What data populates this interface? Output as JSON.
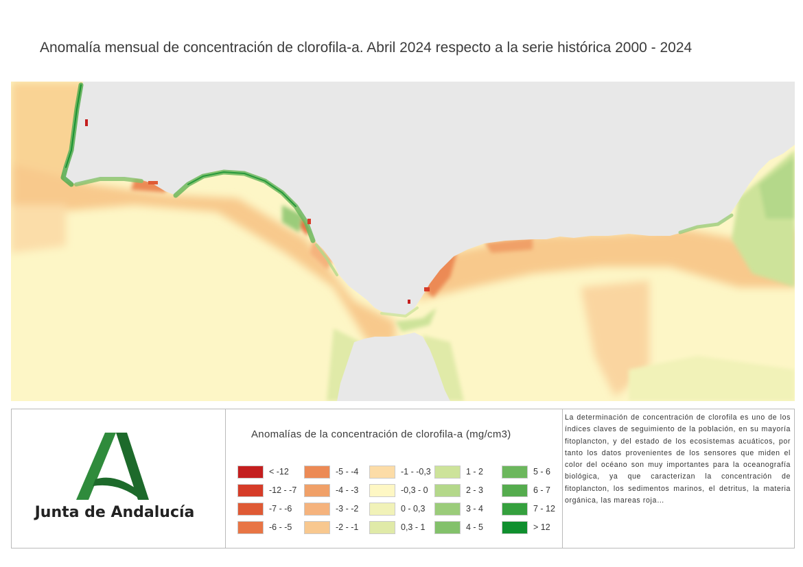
{
  "title": "Anomalía mensual de concentración de clorofila-a. Abril 2024 respecto a la serie histórica 2000 - 2024",
  "legend": {
    "title": "Anomalías de la concentración de clorofila-a (mg/cm3)",
    "items": [
      {
        "label": "< -12",
        "color": "#c41e1e"
      },
      {
        "label": "-12 - -7",
        "color": "#d63c28"
      },
      {
        "label": "-7 - -6",
        "color": "#df5a35"
      },
      {
        "label": "-6 - -5",
        "color": "#e87545"
      },
      {
        "label": "-5 - -4",
        "color": "#ec8a55"
      },
      {
        "label": "-4 - -3",
        "color": "#f0a068"
      },
      {
        "label": "-3 - -2",
        "color": "#f5b37d"
      },
      {
        "label": "-2 - -1",
        "color": "#f8c88f"
      },
      {
        "label": "-1 - -0,3",
        "color": "#fcdca7"
      },
      {
        "label": "-0,3 - 0",
        "color": "#fef7c4"
      },
      {
        "label": "0 - 0,3",
        "color": "#f1f2b8"
      },
      {
        "label": "0,3 - 1",
        "color": "#e0eaa8"
      },
      {
        "label": "1 - 2",
        "color": "#cde39a"
      },
      {
        "label": "2 - 3",
        "color": "#b4d88a"
      },
      {
        "label": "3 - 4",
        "color": "#9bcc7a"
      },
      {
        "label": "4 - 5",
        "color": "#83c16b"
      },
      {
        "label": "5 - 6",
        "color": "#6cb75d"
      },
      {
        "label": "6 - 7",
        "color": "#55ac4e"
      },
      {
        "label": "7 - 12",
        "color": "#35a03e"
      },
      {
        "label": "> 12",
        "color": "#0f8f2e"
      }
    ]
  },
  "organization": "Junta de Andalucía",
  "description": "La determinación de concentración de clorofila es uno de los índices claves de seguimiento de la población, en su mayoría fitoplancton, y del estado de los ecosistemas acuáticos, por tanto los datos provenientes de los sensores que miden el color del océano son muy importantes para la oceanografía biológica, ya que caracterizan la concentración de fitoplancton, los sedimentos marinos, el detritus, la materia orgánica, las mareas roja…",
  "map": {
    "land_color": "#e8e8e8",
    "sea_base_color": "#fdf6c6"
  }
}
